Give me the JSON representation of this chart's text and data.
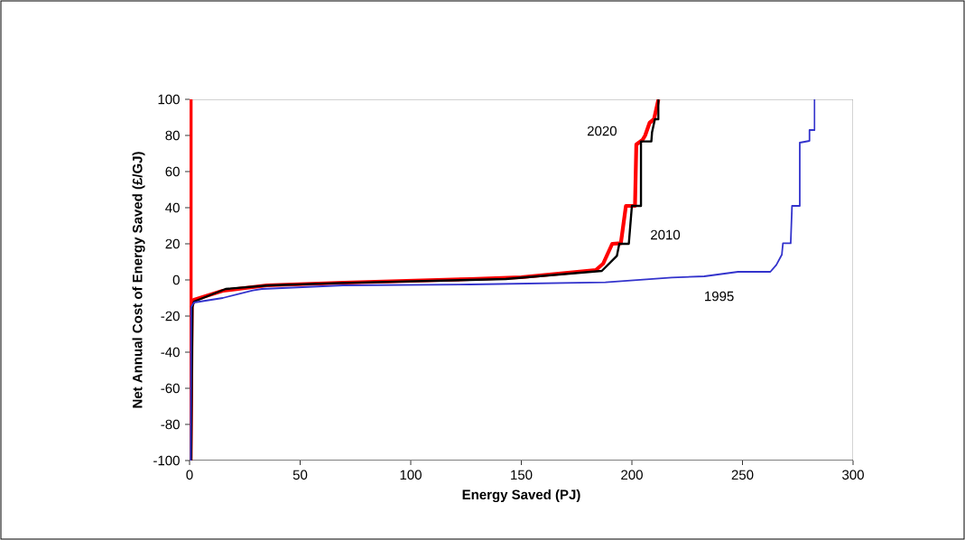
{
  "chart_data": {
    "type": "line",
    "xlabel": "Energy Saved (PJ)",
    "ylabel": "Net Annual Cost of Energy Saved (£/GJ)",
    "xlim": [
      0,
      300
    ],
    "xticks": [
      0,
      50,
      100,
      150,
      200,
      250,
      300
    ],
    "ylim": [
      -100,
      100
    ],
    "yticks": [
      -100,
      -80,
      -60,
      -40,
      -20,
      0,
      20,
      40,
      60,
      80,
      100
    ],
    "grid": false,
    "legend": false,
    "marker": "none",
    "line_style": "solid",
    "series": [
      {
        "name": "2020",
        "color": "#ff0000",
        "x": [
          0.5,
          0.5,
          1,
          2,
          15,
          35,
          70,
          127,
          150,
          183.7,
          187,
          191.1,
          195,
          197.3,
          201.4,
          202,
          204.8,
          206,
          208,
          210,
          212
        ],
        "values": [
          100,
          -100,
          -14,
          -11,
          -6,
          -3,
          -1.5,
          0.5,
          1.5,
          5.5,
          9,
          20,
          20.3,
          41,
          41,
          75,
          77.5,
          80,
          87,
          89,
          100
        ]
      },
      {
        "name": "2010",
        "color": "#000000",
        "x": [
          0.7,
          1.3,
          2,
          16.3,
          36,
          69,
          126.5,
          142.9,
          186.4,
          193.2,
          194.3,
          198.6,
          200,
          204.1,
          204.1,
          208.8,
          209.1,
          210.4,
          212,
          212
        ],
        "values": [
          -100,
          -15,
          -12,
          -5,
          -3,
          -1.7,
          0,
          0.5,
          5,
          13.3,
          20,
          20,
          41,
          41,
          76.7,
          76.7,
          81.7,
          89,
          89,
          100
        ]
      },
      {
        "name": "1995",
        "color": "#3333cc",
        "x": [
          0.5,
          0.7,
          2,
          15,
          28.6,
          32.7,
          69.4,
          127,
          188,
          218,
          232.7,
          248,
          262.6,
          265.3,
          267.8,
          268.3,
          271.8,
          272.4,
          275.9,
          275.9,
          280.3,
          280.3,
          282.6,
          282.6
        ],
        "values": [
          -100,
          -15,
          -12.5,
          -10,
          -5.8,
          -5,
          -3,
          -2.5,
          -1.3,
          1.3,
          2,
          4.5,
          4.5,
          8.3,
          14,
          20.3,
          20.3,
          41,
          41,
          76,
          77,
          83,
          83,
          100
        ]
      }
    ]
  }
}
